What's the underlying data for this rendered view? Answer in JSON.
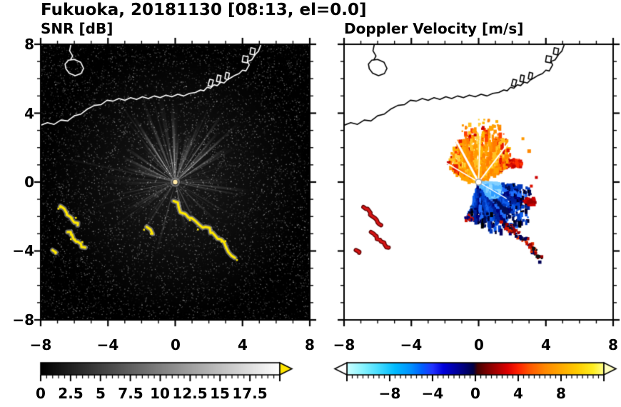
{
  "header": {
    "title": "Fukuoka, 20181130 [08:13, el=0.0]",
    "snr_subtitle": "SNR [dB]",
    "doppler_subtitle": "Doppler Velocity [m/s]"
  },
  "axes": {
    "x_tick_labels": [
      "−8",
      "−4",
      "0",
      "4",
      "8"
    ],
    "y_tick_labels": [
      "8",
      "4",
      "0",
      "−4",
      "−8"
    ]
  },
  "colorbar_labels": {
    "snr": [
      "0",
      "2.5",
      "5",
      "7.5",
      "10",
      "12.5",
      "15",
      "17.5"
    ],
    "doppler": [
      "−8",
      "−4",
      "0",
      "4",
      "8"
    ]
  },
  "coastline": {
    "snr_color": "#ffffff",
    "doppler_color": "#000000",
    "open_paths": [
      [
        [
          -8,
          3.3
        ],
        [
          -7.6,
          3.45
        ],
        [
          -7.2,
          3.35
        ],
        [
          -6.8,
          3.6
        ],
        [
          -6.4,
          3.55
        ],
        [
          -6,
          3.85
        ],
        [
          -5.6,
          3.95
        ],
        [
          -5.2,
          4.25
        ],
        [
          -4.8,
          4.45
        ],
        [
          -4.4,
          4.5
        ],
        [
          -4.05,
          4.75
        ],
        [
          -3.7,
          4.7
        ],
        [
          -3.35,
          4.85
        ],
        [
          -3,
          4.75
        ],
        [
          -2.65,
          4.9
        ],
        [
          -2.3,
          4.8
        ],
        [
          -1.95,
          4.95
        ],
        [
          -1.6,
          4.85
        ],
        [
          -1.25,
          5
        ],
        [
          -0.9,
          4.9
        ],
        [
          -0.55,
          5.05
        ],
        [
          -0.2,
          4.95
        ],
        [
          0.15,
          5.1
        ],
        [
          0.5,
          5
        ],
        [
          0.85,
          5.15
        ],
        [
          1.2,
          5.2
        ],
        [
          1.5,
          5.35
        ],
        [
          1.7,
          5.3
        ],
        [
          1.9,
          5.5
        ],
        [
          2.1,
          5.45
        ],
        [
          2.3,
          5.65
        ],
        [
          2.5,
          5.6
        ],
        [
          2.7,
          5.8
        ],
        [
          2.9,
          5.75
        ],
        [
          3.1,
          5.95
        ],
        [
          3.3,
          6.05
        ],
        [
          3.55,
          6.2
        ],
        [
          3.8,
          6.3
        ],
        [
          4,
          6.5
        ],
        [
          4.2,
          6.45
        ],
        [
          4.4,
          6.8
        ],
        [
          4.3,
          7
        ],
        [
          4.55,
          7.1
        ],
        [
          4.75,
          7.4
        ],
        [
          4.95,
          7.6
        ],
        [
          5.1,
          8
        ]
      ],
      [
        [
          -6.2,
          8
        ],
        [
          -6.28,
          7.62
        ],
        [
          -6.1,
          7.32
        ],
        [
          -6.22,
          7.1
        ]
      ]
    ],
    "closed_paths": [
      [
        [
          -6.55,
          6.85
        ],
        [
          -6.35,
          7.08
        ],
        [
          -6,
          7.12
        ],
        [
          -5.62,
          6.95
        ],
        [
          -5.45,
          6.6
        ],
        [
          -5.6,
          6.3
        ],
        [
          -5.95,
          6.18
        ],
        [
          -6.3,
          6.32
        ],
        [
          -6.5,
          6.58
        ]
      ],
      [
        [
          1.95,
          5.6
        ],
        [
          2.05,
          5.97
        ],
        [
          2.27,
          5.92
        ],
        [
          2.17,
          5.55
        ]
      ],
      [
        [
          2.45,
          5.85
        ],
        [
          2.52,
          6.22
        ],
        [
          2.72,
          6.17
        ],
        [
          2.65,
          5.8
        ]
      ],
      [
        [
          2.95,
          6
        ],
        [
          3.02,
          6.37
        ],
        [
          3.22,
          6.32
        ],
        [
          3.15,
          5.95
        ]
      ],
      [
        [
          3.98,
          6.98
        ],
        [
          4.04,
          7.34
        ],
        [
          4.34,
          7.28
        ],
        [
          4.28,
          6.92
        ]
      ],
      [
        [
          4.44,
          7.44
        ],
        [
          4.5,
          7.8
        ],
        [
          4.76,
          7.74
        ],
        [
          4.7,
          7.38
        ]
      ]
    ]
  },
  "chart_data": [
    {
      "type": "heatmap",
      "panel": "snr",
      "title": "SNR [dB]",
      "xlabel": "",
      "ylabel": "",
      "xlim": [
        -8,
        8
      ],
      "ylim": [
        -8,
        8
      ],
      "xticks": [
        -8,
        -4,
        0,
        4,
        8
      ],
      "yticks": [
        -8,
        -4,
        0,
        4,
        8
      ],
      "minor_tick_step": 1,
      "background": "#000000",
      "description": "Radar SNR field: dark speckle background, bright radial beams from radar at origin, strong yellow ground-clutter echo arcs southwest of radar and along a line running southeast from the radar, coastline overlaid in white",
      "colorbar": {
        "range": [
          0,
          20
        ],
        "label_values": [
          0,
          2.5,
          5,
          7.5,
          10,
          12.5,
          15,
          17.5
        ],
        "minor_step": 0.5,
        "major_step": 2.5,
        "stops": [
          [
            0,
            "#000000"
          ],
          [
            20,
            "#ffffff"
          ]
        ],
        "over_arrow_color": "#ffe600"
      },
      "features": {
        "seed": 7,
        "radar_center": [
          0,
          0
        ],
        "beam_rays": {
          "count": 85,
          "bright_count": 14,
          "bright_angle_range": [
            30,
            150
          ]
        },
        "long_rays": [
          {
            "angle": 168,
            "len": 7.5,
            "alpha": 0.15
          },
          {
            "angle": 197,
            "len": 6.0,
            "alpha": 0.13
          },
          {
            "angle": 216,
            "len": 5.0,
            "alpha": 0.12
          },
          {
            "angle": 125,
            "len": 6.5,
            "alpha": 0.2
          },
          {
            "angle": 105,
            "len": 5.5,
            "alpha": 0.18
          },
          {
            "angle": 18,
            "len": 4.5,
            "alpha": 0.1
          }
        ],
        "echo_color": "#ffe800",
        "echo_fringe_color": "#b9b9b9",
        "echo_arcs": [
          [
            [
              -0.1,
              -1.1
            ],
            [
              0.2,
              -1.45
            ],
            [
              0.6,
              -1.85
            ],
            [
              1,
              -2.1
            ],
            [
              1.45,
              -2.5
            ],
            [
              1.8,
              -2.6
            ],
            [
              2.1,
              -2.95
            ],
            [
              2.35,
              -3.08
            ],
            [
              2.6,
              -3.3
            ],
            [
              2.9,
              -3.5
            ],
            [
              3.15,
              -4.05
            ],
            [
              3.55,
              -4.4
            ]
          ],
          [
            [
              -6.85,
              -1.45
            ],
            [
              -6.6,
              -1.55
            ],
            [
              -6.45,
              -1.9
            ],
            [
              -6.15,
              -2.1
            ],
            [
              -6,
              -2.35
            ],
            [
              -5.8,
              -2.5
            ]
          ],
          [
            [
              -6.4,
              -2.9
            ],
            [
              -6.2,
              -3.05
            ],
            [
              -6.05,
              -3.3
            ],
            [
              -5.8,
              -3.45
            ],
            [
              -5.6,
              -3.6
            ],
            [
              -5.35,
              -3.8
            ]
          ],
          [
            [
              -7.3,
              -3.95
            ],
            [
              -7.1,
              -4.1
            ]
          ],
          [
            [
              -1.7,
              -2.6
            ],
            [
              -1.35,
              -3
            ]
          ]
        ]
      }
    },
    {
      "type": "heatmap",
      "panel": "doppler",
      "title": "Doppler Velocity [m/s]",
      "xlabel": "",
      "ylabel": "",
      "xlim": [
        -8,
        8
      ],
      "ylim": [
        -8,
        8
      ],
      "xticks": [
        -8,
        -4,
        0,
        4,
        8
      ],
      "yticks": [
        -8,
        -4,
        0,
        4,
        8
      ],
      "minor_tick_step": 1,
      "background": "#ffffff",
      "description": "Doppler velocity field: orange/yellow outbound fan north of radar with red fringe, blue/navy inbound fan south-southeast of radar, red clutter arcs to the southwest, red and navy specks along the southeast echo line, coastline overlaid in black",
      "colorbar": {
        "range": [
          -12,
          12
        ],
        "label_values": [
          -8,
          -4,
          0,
          4,
          8
        ],
        "minor_step": 0.5,
        "major_step": 4,
        "stops": [
          [
            -12,
            "#ccffff"
          ],
          [
            -10.5,
            "#88f4ff"
          ],
          [
            -9,
            "#44dcff"
          ],
          [
            -7.5,
            "#00bbff"
          ],
          [
            -6,
            "#0090ff"
          ],
          [
            -5,
            "#0060ff"
          ],
          [
            -4,
            "#2233ff"
          ],
          [
            -3,
            "#0000dd"
          ],
          [
            -2,
            "#0000aa"
          ],
          [
            -1,
            "#000077"
          ],
          [
            -0.2,
            "#000044"
          ],
          [
            0.2,
            "#440000"
          ],
          [
            1,
            "#770000"
          ],
          [
            2,
            "#aa0000"
          ],
          [
            3,
            "#dd0000"
          ],
          [
            4,
            "#ff2200"
          ],
          [
            5,
            "#ff5500"
          ],
          [
            6.5,
            "#ff8800"
          ],
          [
            8,
            "#ffaa00"
          ],
          [
            9.5,
            "#ffcc00"
          ],
          [
            11,
            "#ffee22"
          ],
          [
            12,
            "#ffff88"
          ]
        ],
        "under_arrow_color": "#ffffff",
        "over_arrow_color": "#ffffc0"
      },
      "features": {
        "outbound_fan": {
          "seed": 11,
          "points": 1050,
          "angle_range": [
            28,
            158
          ],
          "sector_deg": 5,
          "rmax": {
            "base": 1.5,
            "amp": 1.7,
            "mu": 85,
            "sig": 50
          },
          "palette": [
            "#ff9100",
            "#ffa200",
            "#ff8400",
            "#ffb300",
            "#ffd040",
            "#ff9900",
            "#ffc020",
            "#ff7b00"
          ],
          "edge_prob": 0.28,
          "edge_colors": [
            "#e81800",
            "#c80000",
            "#ff4000"
          ]
        },
        "inbound_fan": {
          "seed": 23,
          "points": 1150,
          "angle_range": [
            -108,
            -4
          ],
          "sector_deg": 5,
          "rmax": {
            "base": 1.8,
            "amp": 1.4,
            "mu": -40,
            "sig": 45
          },
          "palette": [
            "#1160ee",
            "#0040cc",
            "#002299",
            "#000077",
            "#2070ff",
            "#000d55",
            "#0038bb"
          ],
          "edge_prob": 0.38,
          "edge_colors": [
            "#000030",
            "#000000",
            "#000060"
          ]
        },
        "inner_fan": {
          "seed": 31,
          "points": 270,
          "angle_range": [
            -50,
            -3
          ],
          "sector_deg": 8,
          "rmax": {
            "base": 0.5,
            "amp": 0.95,
            "mu": -25,
            "sig": 30
          },
          "palette": [
            "#52b6ff",
            "#83d0ff",
            "#2f9cff",
            "#9adcff"
          ],
          "edge_prob": 0,
          "edge_colors": [
            "#000000"
          ]
        },
        "blobs": [
          {
            "seed": 41,
            "x": 2.1,
            "y": 1.15,
            "sx": 0.5,
            "sy": 0.28,
            "n": 70,
            "colors": [
              "#e01000",
              "#c00000",
              "#ff3000"
            ]
          },
          {
            "seed": 43,
            "x": 2.95,
            "y": -1.05,
            "sx": 0.38,
            "sy": 0.22,
            "n": 45,
            "colors": [
              "#cc0000",
              "#990000"
            ]
          },
          {
            "seed": 47,
            "x": -0.6,
            "y": -2.0,
            "sx": 0.3,
            "sy": 0.2,
            "n": 18,
            "colors": [
              "#000077",
              "#cc1100"
            ]
          }
        ],
        "arc_specks": {
          "seed": 53,
          "n": 90,
          "jitter": 0.16,
          "sizes": [
            2,
            5
          ],
          "path": [
            [
              1.25,
              -2.3
            ],
            [
              1.8,
              -2.65
            ],
            [
              2.3,
              -3
            ],
            [
              2.7,
              -3.3
            ],
            [
              3,
              -3.6
            ],
            [
              3.3,
              -4.1
            ],
            [
              3.6,
              -4.45
            ]
          ],
          "colors": [
            "#c81000",
            "#980000",
            "#000055",
            "#101010",
            "#e03000"
          ]
        },
        "red_arc_color": "#d41414",
        "red_arc_fringe": "#5a0000",
        "red_arcs": [
          [
            [
              -6.85,
              -1.45
            ],
            [
              -6.6,
              -1.55
            ],
            [
              -6.45,
              -1.9
            ],
            [
              -6.15,
              -2.1
            ],
            [
              -6,
              -2.35
            ],
            [
              -5.8,
              -2.5
            ]
          ],
          [
            [
              -6.4,
              -2.9
            ],
            [
              -6.2,
              -3.05
            ],
            [
              -6.05,
              -3.3
            ],
            [
              -5.8,
              -3.45
            ],
            [
              -5.6,
              -3.6
            ],
            [
              -5.35,
              -3.8
            ]
          ],
          [
            [
              -7.3,
              -3.95
            ],
            [
              -7.1,
              -4.1
            ]
          ]
        ],
        "white_slices": [
          {
            "angle": 119,
            "len": 3.5,
            "w": 3
          },
          {
            "angle": 88,
            "len": 3.3,
            "w": 1.6
          },
          {
            "angle": 52,
            "len": 2.9,
            "w": 2
          },
          {
            "angle": 150,
            "len": 2.2,
            "w": 1.6
          },
          {
            "angle": -30,
            "len": 1.9,
            "w": 1.4
          }
        ],
        "outliers": [
          {
            "x": 2.9,
            "y": 1.9,
            "c": "#ff8800",
            "s": 5
          },
          {
            "x": 3.35,
            "y": 0.35,
            "c": "#cc0000",
            "s": 4
          },
          {
            "x": 2.55,
            "y": 2.6,
            "c": "#ff9900",
            "s": 4
          },
          {
            "x": -1.0,
            "y": 3.35,
            "c": "#ff9900",
            "s": 3
          },
          {
            "x": 3.05,
            "y": -0.15,
            "c": "#dd1100",
            "s": 4
          },
          {
            "x": 1.0,
            "y": 3.6,
            "c": "#ffb000",
            "s": 4
          }
        ]
      }
    }
  ]
}
